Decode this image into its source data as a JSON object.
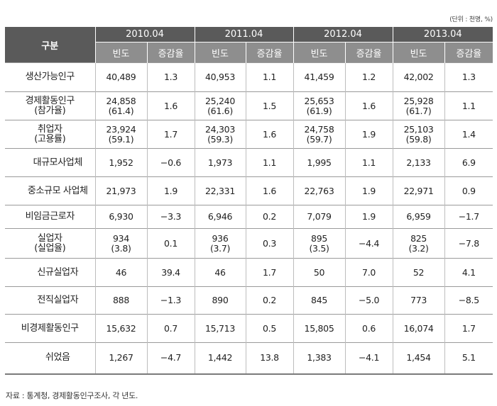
{
  "unit_note": "(단위 : 천명, %)",
  "source_note": "자료 : 통계청, 경제활동인구조사, 각 년도.",
  "header": {
    "category": "구분",
    "years": [
      "2010.04",
      "2011.04",
      "2012.04",
      "2013.04"
    ],
    "freq_label": "빈도",
    "rate_label": "증감율"
  },
  "rows": [
    {
      "label": "생산가능인구",
      "f1": "40,489",
      "r1": "1.3",
      "f2": "40,953",
      "r2": "1.1",
      "f3": "41,459",
      "r3": "1.2",
      "f4": "42,002",
      "r4": "1.3"
    },
    {
      "label": "경제활동인구",
      "label2": "(참가율)",
      "f1": "24,858",
      "f1b": "(61.4)",
      "r1": "1.6",
      "f2": "25,240",
      "f2b": "(61.6)",
      "r2": "1.5",
      "f3": "25,653",
      "f3b": "(61.9)",
      "r3": "1.6",
      "f4": "25,928",
      "f4b": "(61.7)",
      "r4": "1.1"
    },
    {
      "label": "취업자",
      "label2": "(고용률)",
      "f1": "23,924",
      "f1b": "(59.1)",
      "r1": "1.7",
      "f2": "24,303",
      "f2b": "(59.3)",
      "r2": "1.6",
      "f3": "24,758",
      "f3b": "(59.7)",
      "r3": "1.9",
      "f4": "25,103",
      "f4b": "(59.8)",
      "r4": "1.4"
    },
    {
      "label": "대규모사업체",
      "f1": "1,952",
      "r1": "−0.6",
      "f2": "1,973",
      "r2": "1.1",
      "f3": "1,995",
      "r3": "1.1",
      "f4": "2,133",
      "r4": "6.9"
    },
    {
      "label": "중소규모 사업체",
      "f1": "21,973",
      "r1": "1.9",
      "f2": "22,331",
      "r2": "1.6",
      "f3": "22,763",
      "r3": "1.9",
      "f4": "22,971",
      "r4": "0.9"
    },
    {
      "label": "비임금근로자",
      "f1": "6,930",
      "r1": "−3.3",
      "f2": "6,946",
      "r2": "0.2",
      "f3": "7,079",
      "r3": "1.9",
      "f4": "6,959",
      "r4": "−1.7"
    },
    {
      "label": "실업자",
      "label2": "(실업율)",
      "f1": "934",
      "f1b": "(3.8)",
      "r1": "0.1",
      "f2": "936",
      "f2b": "(3.7)",
      "r2": "0.3",
      "f3": "895",
      "f3b": "(3.5)",
      "r3": "−4.4",
      "f4": "825",
      "f4b": "(3.2)",
      "r4": "−7.8"
    },
    {
      "label": "신규실업자",
      "f1": "46",
      "r1": "39.4",
      "f2": "46",
      "r2": "1.7",
      "f3": "50",
      "r3": "7.0",
      "f4": "52",
      "r4": "4.1"
    },
    {
      "label": "전직실업자",
      "f1": "888",
      "r1": "−1.3",
      "f2": "890",
      "r2": "0.2",
      "f3": "845",
      "r3": "−5.0",
      "f4": "773",
      "r4": "−8.5"
    },
    {
      "label": "비경제활동인구",
      "f1": "15,632",
      "r1": "0.7",
      "f2": "15,713",
      "r2": "0.5",
      "f3": "15,805",
      "r3": "0.6",
      "f4": "16,074",
      "r4": "1.7"
    },
    {
      "label": "쉬었음",
      "f1": "1,267",
      "r1": "−4.7",
      "f2": "1,442",
      "r2": "13.8",
      "f3": "1,383",
      "r3": "−4.1",
      "f4": "1,454",
      "r4": "5.1"
    }
  ]
}
